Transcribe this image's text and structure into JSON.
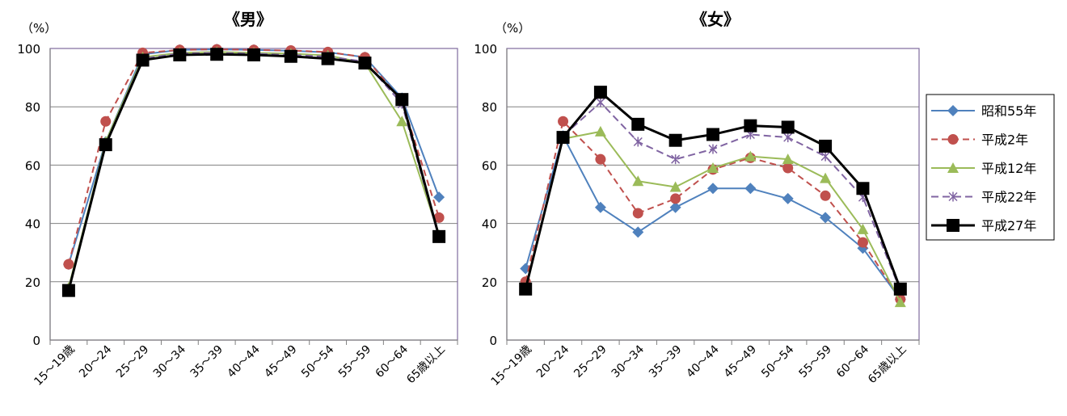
{
  "colors": {
    "series": [
      "#4F81BD",
      "#C0504D",
      "#9BBB59",
      "#8064A2",
      "#000000"
    ],
    "plot_border": "#7F6A9E",
    "grid": "#808080"
  },
  "chart_data": [
    {
      "type": "line",
      "title": "《男》",
      "unit_label": "（%）",
      "ylim": [
        0,
        100
      ],
      "yticks": [
        "0",
        "20",
        "40",
        "60",
        "80",
        "100"
      ],
      "grid": "horizontal",
      "categories": [
        "15～19歳",
        "20～24",
        "25～29",
        "30～34",
        "35～39",
        "40～44",
        "45～49",
        "50～54",
        "55～59",
        "60～64",
        "65歳以上"
      ],
      "series": [
        {
          "name": "昭和55年",
          "values": [
            26,
            68,
            98,
            99.5,
            99.7,
            99.5,
            99.2,
            98.7,
            97,
            83,
            49
          ]
        },
        {
          "name": "平成2年",
          "values": [
            26,
            75,
            98.5,
            99.5,
            99.7,
            99.5,
            99.3,
            98.8,
            97,
            82,
            42
          ]
        },
        {
          "name": "平成12年",
          "values": [
            18,
            68,
            97,
            98.5,
            98.8,
            98.5,
            98.2,
            97.6,
            95,
            75,
            36
          ]
        },
        {
          "name": "平成22年",
          "values": [
            17,
            67,
            96.5,
            98.3,
            98.5,
            98.2,
            97.8,
            97.2,
            95.5,
            81,
            35
          ]
        },
        {
          "name": "平成27年",
          "values": [
            17,
            67,
            96,
            97.8,
            98,
            97.8,
            97.3,
            96.5,
            95,
            82.5,
            35.5
          ]
        }
      ]
    },
    {
      "type": "line",
      "title": "《女》",
      "unit_label": "（%）",
      "ylim": [
        0,
        100
      ],
      "yticks": [
        "0",
        "20",
        "40",
        "60",
        "80",
        "100"
      ],
      "grid": "horizontal",
      "legend_position": "right",
      "categories": [
        "15～19歳",
        "20～24",
        "25～29",
        "30～34",
        "35～39",
        "40～44",
        "45～49",
        "50～54",
        "55～59",
        "60～64",
        "65歳以上"
      ],
      "series": [
        {
          "name": "昭和55年",
          "values": [
            24.5,
            70,
            45.5,
            37,
            45.5,
            52,
            52,
            48.5,
            42,
            31.5,
            14
          ]
        },
        {
          "name": "平成2年",
          "values": [
            20,
            75,
            62,
            43.5,
            48.5,
            58.5,
            62.5,
            59,
            49.5,
            33.5,
            14
          ]
        },
        {
          "name": "平成12年",
          "values": [
            18,
            69,
            71.5,
            54.5,
            52.5,
            59,
            63,
            62,
            55.5,
            38,
            13
          ]
        },
        {
          "name": "平成22年",
          "values": [
            17.5,
            70,
            81.5,
            68,
            62,
            65.5,
            70.5,
            69.5,
            63,
            49,
            17
          ]
        },
        {
          "name": "平成27年",
          "values": [
            17.5,
            69.5,
            85,
            74,
            68.5,
            70.5,
            73.5,
            73,
            66.5,
            52,
            17.5
          ]
        }
      ]
    }
  ]
}
